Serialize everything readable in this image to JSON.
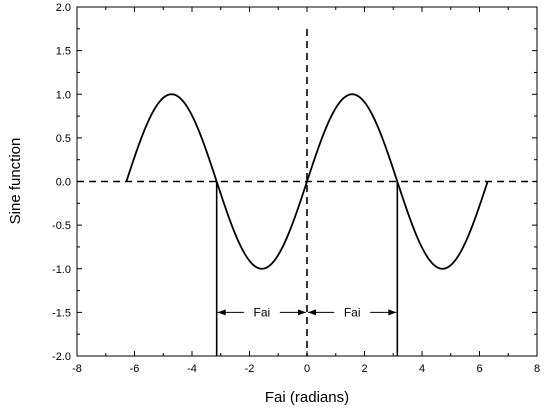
{
  "chart_data": {
    "type": "line",
    "title": "",
    "xlabel": "Fai (radians)",
    "ylabel": "Sine function",
    "xlim": [
      -8,
      8
    ],
    "ylim": [
      -2.0,
      2.0
    ],
    "x_ticks": [
      -8,
      -6,
      -4,
      -2,
      0,
      2,
      4,
      6,
      8
    ],
    "y_ticks": [
      -2.0,
      -1.5,
      -1.0,
      -0.5,
      0.0,
      0.5,
      1.0,
      1.5,
      2.0
    ],
    "x_tick_labels": [
      "-8",
      "-6",
      "-4",
      "-2",
      "0",
      "2",
      "4",
      "6",
      "8"
    ],
    "y_tick_labels": [
      "-2.0",
      "-1.5",
      "-1.0",
      "-0.5",
      "0.0",
      "0.5",
      "1.0",
      "1.5",
      "2.0"
    ],
    "grid": false,
    "series": [
      {
        "function": "sin(x)",
        "x_range": [
          -6.2832,
          6.2832
        ],
        "line_style": "solid",
        "color": "#000000"
      }
    ],
    "reference_lines": [
      {
        "orientation": "horizontal",
        "value": 0.0,
        "line_style": "dashed"
      },
      {
        "orientation": "vertical",
        "value": 0.0,
        "line_style": "dashed"
      }
    ],
    "vertical_markers": [
      {
        "x": -3.1416,
        "y_from": -2.0,
        "y_to": 0.0
      },
      {
        "x": 3.1416,
        "y_from": -2.0,
        "y_to": 0.0
      }
    ],
    "annotations": [
      {
        "label": "Fai",
        "x_from": -3.1416,
        "x_to": 0.0,
        "y": -1.5,
        "arrows": "both"
      },
      {
        "label": "Fai",
        "x_from": 0.0,
        "x_to": 3.1416,
        "y": -1.5,
        "arrows": "both"
      }
    ]
  }
}
